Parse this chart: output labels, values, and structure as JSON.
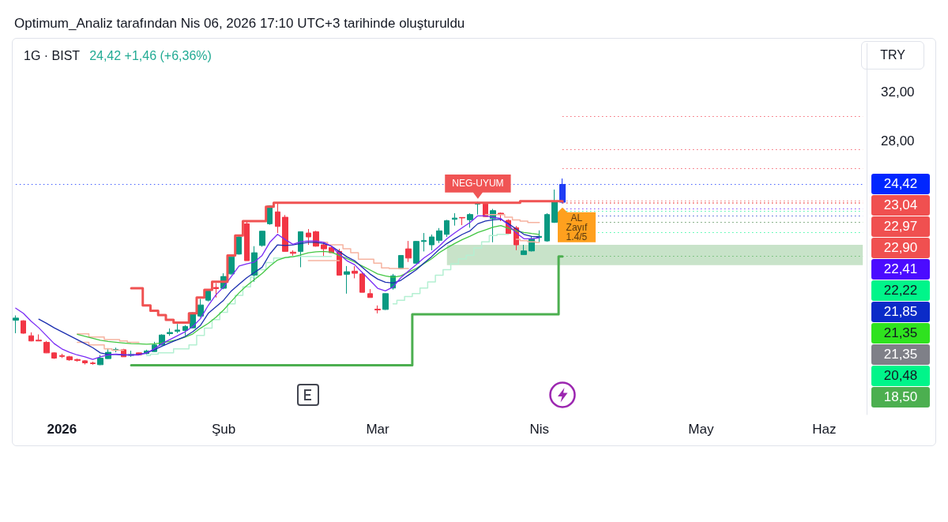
{
  "chart_data": {
    "type": "candlestick",
    "title": "Optimum_Analiz tarafından Nis 06, 2026 17:10 UTC+3 tarihinde oluşturuldu",
    "subtitle": "1G · BIST",
    "ylabel": "TRY",
    "categories": [
      null,
      null,
      null,
      null,
      null,
      null,
      "2026",
      null,
      null,
      null,
      null,
      null,
      null,
      null,
      null,
      null,
      null,
      null,
      null,
      null,
      null,
      null,
      null,
      null,
      null,
      null,
      null,
      "Şub",
      null,
      null,
      null,
      null,
      null,
      null,
      null,
      null,
      null,
      null,
      null,
      null,
      null,
      null,
      null,
      null,
      null,
      null,
      null,
      "Mar",
      null,
      null,
      null,
      null,
      null,
      null,
      null,
      null,
      null,
      null,
      null,
      null,
      null,
      null,
      null,
      null,
      null,
      null,
      null,
      null,
      "Nis",
      null,
      null,
      null,
      null,
      null,
      null,
      null,
      null,
      null,
      null,
      null,
      null,
      null,
      null,
      null,
      null,
      null,
      null,
      null,
      null,
      "May",
      null,
      null,
      null,
      null,
      null,
      null,
      null,
      null,
      null,
      null,
      null,
      null,
      null,
      null,
      null,
      "Haz",
      null,
      null,
      null,
      null,
      null
    ],
    "ohlc": [
      [
        13.26,
        13.65,
        12.19,
        13.43
      ],
      [
        13.21,
        13.25,
        12.15,
        12.19
      ],
      [
        11.98,
        12.26,
        11.52,
        11.55
      ],
      [
        11.62,
        12.09,
        11.55,
        11.55
      ],
      [
        11.44,
        11.55,
        10.55,
        10.57
      ],
      [
        10.57,
        10.62,
        10.08,
        10.14
      ],
      [
        10.35,
        10.5,
        10.15,
        10.28
      ],
      [
        10.25,
        10.33,
        9.92,
        10.0
      ],
      [
        10.03,
        10.1,
        9.85,
        9.95
      ],
      [
        9.92,
        9.98,
        9.62,
        9.75
      ],
      [
        9.74,
        9.85,
        9.6,
        9.69
      ],
      [
        9.6,
        10.4,
        9.56,
        10.14
      ],
      [
        10.1,
        10.96,
        10.08,
        10.62
      ],
      [
        10.78,
        11.0,
        10.62,
        10.86
      ],
      [
        10.83,
        10.9,
        10.25,
        10.25
      ],
      [
        10.36,
        10.75,
        10.25,
        10.44
      ],
      [
        10.57,
        10.6,
        10.38,
        10.42
      ],
      [
        10.51,
        10.83,
        10.46,
        10.73
      ],
      [
        10.68,
        11.48,
        10.66,
        11.22
      ],
      [
        11.22,
        12.1,
        11.2,
        12.04
      ],
      [
        12.15,
        12.58,
        11.98,
        12.25
      ],
      [
        12.35,
        12.95,
        12.2,
        12.45
      ],
      [
        12.41,
        12.85,
        12.0,
        12.74
      ],
      [
        12.63,
        13.9,
        12.6,
        13.86
      ],
      [
        13.6,
        15.01,
        13.5,
        14.51
      ],
      [
        14.9,
        15.81,
        14.8,
        15.66
      ],
      [
        15.95,
        16.31,
        15.12,
        15.85
      ],
      [
        15.88,
        17.11,
        15.8,
        16.85
      ],
      [
        17.06,
        18.55,
        17.0,
        18.47
      ],
      [
        18.69,
        20.2,
        18.65,
        20.1
      ],
      [
        21.18,
        21.4,
        18.15,
        18.15
      ],
      [
        16.96,
        19.34,
        16.42,
        18.8
      ],
      [
        19.4,
        20.6,
        19.3,
        20.57
      ],
      [
        21.18,
        22.7,
        21.1,
        22.65
      ],
      [
        22.16,
        22.91,
        20.42,
        20.96
      ],
      [
        21.72,
        21.9,
        18.9,
        18.91
      ],
      [
        18.85,
        19.0,
        18.55,
        18.75
      ],
      [
        18.91,
        20.55,
        17.61,
        20.53
      ],
      [
        20.42,
        20.75,
        19.45,
        20.1
      ],
      [
        20.53,
        20.6,
        19.3,
        19.34
      ],
      [
        19.45,
        19.7,
        18.47,
        19.12
      ],
      [
        19.23,
        19.35,
        18.8,
        18.8
      ],
      [
        18.91,
        19.12,
        16.96,
        16.96
      ],
      [
        17.03,
        17.71,
        15.44,
        17.24
      ],
      [
        17.29,
        17.7,
        16.7,
        17.11
      ],
      [
        17.06,
        17.2,
        15.55,
        15.55
      ],
      [
        15.44,
        15.81,
        15.12,
        15.12
      ],
      [
        14.17,
        14.47,
        13.82,
        14.1
      ],
      [
        14.14,
        15.45,
        14.1,
        15.44
      ],
      [
        15.9,
        17.06,
        15.77,
        16.9
      ],
      [
        17.5,
        18.6,
        17.45,
        18.58
      ],
      [
        19.12,
        19.77,
        18.04,
        18.36
      ],
      [
        17.94,
        19.77,
        17.9,
        19.73
      ],
      [
        19.72,
        20.42,
        18.91,
        19.8
      ],
      [
        19.45,
        20.3,
        19.0,
        20.1
      ],
      [
        19.82,
        20.83,
        19.6,
        20.6
      ],
      [
        20.31,
        21.5,
        20.1,
        21.44
      ],
      [
        21.55,
        22.05,
        21.03,
        21.65
      ],
      [
        21.7,
        21.72,
        21.07,
        21.66
      ],
      [
        21.51,
        22.05,
        20.86,
        21.94
      ],
      [
        22.8,
        22.98,
        21.94,
        22.92
      ],
      [
        22.81,
        22.95,
        21.75,
        21.77
      ],
      [
        21.61,
        22.4,
        19.66,
        22.26
      ],
      [
        22.05,
        22.1,
        21.4,
        21.94
      ],
      [
        21.46,
        21.55,
        20.3,
        20.38
      ],
      [
        20.86,
        21.0,
        19.01,
        19.45
      ],
      [
        18.65,
        19.45,
        18.63,
        18.95
      ],
      [
        18.95,
        20.15,
        18.9,
        19.95
      ],
      [
        20.05,
        20.64,
        19.66,
        20.15
      ],
      [
        19.77,
        22.05,
        19.7,
        21.94
      ],
      [
        21.3,
        23.99,
        21.25,
        22.96
      ],
      [
        22.95,
        24.9,
        22.85,
        24.42
      ],
      null,
      null,
      null,
      null,
      null,
      null,
      null,
      null,
      null,
      null,
      null,
      null,
      null,
      null,
      null,
      null,
      null,
      null,
      null,
      null,
      null,
      null,
      null,
      null,
      null,
      null,
      null,
      null,
      null,
      null,
      null,
      null,
      null,
      null,
      null,
      null,
      null,
      null,
      null
    ],
    "colors": [
      "#089981",
      "#f23645",
      "#f23645",
      "#f23645",
      "#f23645",
      "#f23645",
      "#f23645",
      "#f23645",
      "#f23645",
      "#f23645",
      "#f23645",
      "#089981",
      "#089981",
      "#089981",
      "#f23645",
      "#089981",
      "#f23645",
      "#089981",
      "#089981",
      "#089981",
      "#089981",
      "#089981",
      "#089981",
      "#089981",
      "#089981",
      "#089981",
      "#f23645",
      "#089981",
      "#089981",
      "#089981",
      "#f23645",
      "#089981",
      "#089981",
      "#089981",
      "#f23645",
      "#f23645",
      "#f23645",
      "#089981",
      "#f23645",
      "#f23645",
      "#f23645",
      "#f23645",
      "#f23645",
      "#089981",
      "#f23645",
      "#f23645",
      "#f23645",
      "#f23645",
      "#089981",
      "#089981",
      "#089981",
      "#f23645",
      "#089981",
      "#089981",
      "#089981",
      "#089981",
      "#089981",
      "#089981",
      "#f23645",
      "#089981",
      "#089981",
      "#f23645",
      "#089981",
      "#f23645",
      "#f23645",
      "#f23645",
      "#089981",
      "#089981",
      "#089981",
      "#089981",
      "#089981",
      "#1f3df5",
      null,
      null,
      null,
      null,
      null,
      null,
      null,
      null,
      null,
      null,
      null,
      null,
      null,
      null,
      null,
      null,
      null,
      null,
      null,
      null,
      null,
      null,
      null,
      null,
      null,
      null,
      null,
      null,
      null,
      null,
      null,
      null,
      null,
      null,
      null,
      null,
      null,
      null,
      null
    ],
    "series": [
      {
        "type": "area",
        "color": "#c8e3c9",
        "values": [
          null,
          null,
          null,
          null,
          null,
          null,
          null,
          null,
          null,
          null,
          null,
          null,
          null,
          null,
          null,
          null,
          null,
          null,
          null,
          null,
          null,
          null,
          null,
          null,
          null,
          null,
          null,
          null,
          null,
          null,
          null,
          null,
          null,
          null,
          null,
          null,
          null,
          null,
          null,
          null,
          null,
          null,
          null,
          null,
          null,
          null,
          null,
          null,
          null,
          null,
          null,
          null,
          null,
          null,
          null,
          null,
          null,
          null,
          null,
          null,
          null,
          null,
          null,
          null,
          null,
          null,
          null,
          null,
          null,
          null,
          null,
          null,
          null,
          null,
          null,
          null,
          null,
          null,
          null,
          null,
          null,
          null,
          null,
          null,
          null,
          null,
          null,
          null,
          null,
          null,
          null,
          null,
          null,
          null,
          null,
          null,
          null,
          null,
          null,
          null,
          null,
          null,
          null,
          null,
          null,
          null,
          null,
          null,
          null,
          null,
          null
        ],
        "lower": [
          null,
          null,
          null,
          null,
          null,
          null,
          null,
          null,
          null,
          null,
          null,
          null,
          null,
          null,
          null,
          null,
          null,
          null,
          null,
          null,
          null,
          null,
          null,
          null,
          null,
          null,
          null,
          null,
          null,
          null,
          null,
          null,
          null,
          null,
          null,
          null,
          null,
          null,
          null,
          null,
          null,
          null,
          null,
          null,
          null,
          null,
          null,
          null,
          null,
          null,
          null,
          null,
          null,
          null,
          null,
          null,
          17.78,
          17.78,
          17.78,
          17.78,
          17.78,
          17.78,
          17.78,
          17.78,
          17.78,
          17.78,
          17.78,
          17.78,
          17.78,
          17.78,
          17.78,
          17.78,
          17.78,
          17.78,
          17.78,
          17.78,
          17.78,
          17.78,
          17.78,
          17.78,
          17.78,
          17.78,
          17.78,
          17.78,
          17.78,
          17.78,
          17.78,
          17.78,
          17.78,
          17.78,
          17.78,
          17.78,
          17.78,
          17.78,
          17.78,
          17.78,
          17.78,
          17.78,
          17.78,
          17.78,
          17.78,
          17.78,
          17.78,
          17.78,
          17.78,
          17.78,
          17.78,
          17.78,
          17.78,
          17.78,
          17.78
        ],
        "upper": [
          null,
          null,
          null,
          null,
          null,
          null,
          null,
          null,
          null,
          null,
          null,
          null,
          null,
          null,
          null,
          null,
          null,
          null,
          null,
          null,
          null,
          null,
          null,
          null,
          null,
          null,
          null,
          null,
          null,
          null,
          null,
          null,
          null,
          null,
          null,
          null,
          null,
          null,
          null,
          null,
          null,
          null,
          null,
          null,
          null,
          null,
          null,
          null,
          null,
          null,
          null,
          null,
          null,
          null,
          null,
          null,
          19.45,
          19.45,
          19.45,
          19.45,
          19.45,
          19.45,
          19.45,
          19.45,
          19.45,
          19.45,
          19.45,
          19.45,
          19.45,
          19.45,
          19.45,
          19.45,
          19.45,
          19.45,
          19.45,
          19.45,
          19.45,
          19.45,
          19.45,
          19.45,
          19.45,
          19.45,
          19.45,
          19.45,
          19.45,
          19.45,
          19.45,
          19.45,
          19.45,
          19.45,
          19.45,
          19.45,
          19.45,
          19.45,
          19.45,
          19.45,
          19.45,
          19.45,
          19.45,
          19.45,
          19.45,
          19.45,
          19.45,
          19.45,
          19.45,
          19.45,
          19.45,
          19.45,
          19.45,
          19.45,
          19.45
        ]
      },
      {
        "type": "step",
        "color": "#f6b3a0",
        "values": [
          null,
          null,
          null,
          null,
          null,
          null,
          null,
          null,
          12.13,
          12.13,
          11.87,
          11.87,
          11.66,
          11.66,
          11.55,
          11.44,
          11.44,
          null,
          null,
          null,
          null,
          null,
          null,
          null,
          null,
          null,
          null,
          null,
          null,
          null,
          null,
          null,
          null,
          null,
          null,
          null,
          null,
          null,
          null,
          null,
          19.66,
          19.45,
          19.45,
          19.12,
          18.8,
          18.26,
          18.26,
          17.94,
          17.55,
          17.5,
          17.5,
          17.5,
          null,
          null,
          null,
          null,
          null,
          null,
          null,
          null,
          null,
          21.94,
          21.94,
          21.94,
          21.72,
          21.5,
          21.4,
          21.29,
          21.29,
          null,
          null,
          null,
          null,
          null,
          null,
          null,
          null,
          null,
          null,
          null,
          null,
          null,
          null,
          null,
          null,
          null,
          null,
          null,
          null,
          null,
          null,
          null,
          null,
          null,
          null,
          null,
          null,
          null,
          null,
          null,
          null,
          null,
          null,
          null,
          null,
          null,
          null,
          null,
          null,
          null,
          null
        ]
      },
      {
        "type": "step",
        "color": "#f6b3a0",
        "values": [
          null,
          null,
          null,
          null,
          null,
          null,
          null,
          null,
          11.44,
          11.44,
          11.22,
          11.22,
          10.9,
          10.79,
          10.79,
          null,
          null,
          null,
          null,
          null,
          null,
          null,
          null,
          null,
          null,
          null,
          null,
          null,
          null,
          null,
          null,
          null,
          null,
          null,
          null,
          null,
          null,
          null,
          18.15,
          18.15,
          18.15,
          18.15,
          18.15,
          null,
          null,
          null,
          null,
          null,
          null,
          null,
          null,
          null,
          null,
          null,
          null,
          null,
          null,
          null,
          null,
          null,
          null,
          null,
          null,
          null,
          null,
          19.9,
          19.8,
          19.7,
          19.65,
          null,
          null,
          null,
          null,
          null,
          null,
          null,
          null,
          null,
          null,
          null,
          null,
          null,
          null,
          null,
          null,
          null,
          null,
          null,
          null,
          null,
          null,
          null,
          null,
          null,
          null,
          null,
          null,
          null,
          null,
          null,
          null,
          null,
          null,
          null,
          null,
          null,
          null,
          null,
          null,
          null,
          null
        ]
      },
      {
        "type": "step",
        "color": "#b4f0d2",
        "values": [
          null,
          null,
          null,
          null,
          null,
          null,
          null,
          null,
          null,
          null,
          null,
          null,
          null,
          null,
          null,
          null,
          null,
          10.35,
          10.47,
          10.57,
          10.57,
          10.9,
          10.9,
          11.22,
          12.0,
          12.6,
          13.3,
          13.9,
          14.6,
          15.3,
          16.0,
          16.8,
          17.4,
          18.0,
          18.36,
          18.4,
          18.5,
          18.5,
          18.5,
          18.5,
          18.5,
          18.5,
          null,
          null,
          null,
          null,
          null,
          null,
          null,
          14.6,
          14.9,
          15.2,
          15.44,
          15.9,
          16.4,
          16.96,
          17.4,
          17.9,
          18.3,
          18.6,
          19.2,
          19.7,
          20.21,
          20.31,
          20.31,
          null,
          null,
          null,
          null,
          null,
          null,
          null,
          null,
          null,
          null,
          null,
          null,
          null,
          null,
          null,
          null,
          null,
          null,
          null,
          null,
          null,
          null,
          null,
          null,
          null,
          null,
          null,
          null,
          null,
          null,
          null,
          null,
          null,
          null,
          null,
          null,
          null,
          null,
          null,
          null,
          null,
          null,
          null,
          null,
          null,
          null
        ]
      },
      {
        "type": "line",
        "color": "#43c743",
        "values": [
          null,
          null,
          null,
          null,
          null,
          null,
          null,
          null,
          12.09,
          11.94,
          11.77,
          11.61,
          11.51,
          11.44,
          11.38,
          11.33,
          11.31,
          11.29,
          11.31,
          11.4,
          11.51,
          11.66,
          11.87,
          12.13,
          12.6,
          13.0,
          13.5,
          14.1,
          14.8,
          15.5,
          16.1,
          16.6,
          17.1,
          17.7,
          18.2,
          18.41,
          18.47,
          18.62,
          18.8,
          18.88,
          18.91,
          18.84,
          18.58,
          18.32,
          18.04,
          17.71,
          17.39,
          17.06,
          16.9,
          16.78,
          16.9,
          17.2,
          17.5,
          17.9,
          18.3,
          18.8,
          19.2,
          19.56,
          19.88,
          20.16,
          20.47,
          20.68,
          20.9,
          21.03,
          20.81,
          20.6,
          20.47,
          20.38,
          20.31,
          null,
          null,
          null,
          null,
          null,
          null,
          null,
          null,
          null,
          null,
          null,
          null,
          null,
          null,
          null,
          null,
          null,
          null,
          null,
          null,
          null,
          null,
          null,
          null,
          null,
          null,
          null,
          null,
          null,
          null,
          null,
          null,
          null,
          null,
          null,
          null,
          null,
          null,
          null,
          null,
          null,
          null
        ]
      },
      {
        "type": "line",
        "color": "#1c2fb0",
        "values": [
          null,
          null,
          null,
          13.34,
          13.0,
          12.63,
          12.31,
          11.98,
          11.66,
          11.33,
          11.0,
          10.57,
          10.44,
          10.44,
          10.4,
          10.4,
          10.44,
          10.57,
          10.83,
          11.12,
          11.4,
          11.66,
          11.92,
          12.31,
          12.84,
          13.82,
          14.36,
          14.9,
          15.66,
          16.2,
          16.74,
          17.18,
          17.61,
          18.69,
          19.45,
          19.4,
          19.45,
          19.56,
          19.66,
          19.66,
          19.56,
          19.34,
          18.91,
          18.47,
          18.15,
          17.61,
          17.06,
          16.64,
          16.38,
          16.31,
          16.53,
          16.96,
          17.39,
          17.94,
          18.47,
          19.08,
          19.56,
          19.95,
          20.31,
          20.6,
          21.18,
          21.4,
          21.51,
          21.55,
          21.18,
          20.75,
          20.31,
          20.14,
          20.1,
          null,
          null,
          null,
          null,
          null,
          null,
          null,
          null,
          null,
          null,
          null,
          null,
          null,
          null,
          null,
          null,
          null,
          null,
          null,
          null,
          null,
          null,
          null,
          null,
          null,
          null,
          null,
          null,
          null,
          null,
          null,
          null,
          null,
          null,
          null,
          null,
          null,
          null,
          null,
          null,
          null,
          null
        ]
      },
      {
        "type": "line",
        "color": "#7a2cf5",
        "values": [
          14.25,
          13.82,
          13.17,
          12.63,
          11.98,
          11.33,
          10.9,
          10.62,
          10.4,
          10.25,
          10.03,
          10.25,
          10.4,
          10.47,
          10.42,
          10.4,
          10.4,
          10.57,
          10.9,
          11.33,
          11.66,
          11.98,
          12.31,
          12.74,
          13.39,
          14.47,
          15.34,
          15.99,
          16.85,
          17.71,
          17.89,
          18.04,
          18.58,
          19.66,
          20.31,
          19.88,
          19.49,
          19.71,
          19.77,
          19.77,
          19.66,
          19.34,
          18.69,
          18.15,
          17.82,
          17.18,
          16.53,
          15.88,
          15.66,
          15.99,
          16.74,
          17.29,
          17.82,
          18.36,
          18.8,
          19.34,
          19.95,
          20.42,
          20.86,
          21.29,
          21.83,
          21.83,
          21.72,
          21.61,
          21.07,
          20.42,
          19.95,
          19.95,
          20.03,
          null,
          null,
          null,
          null,
          null,
          null,
          null,
          null,
          null,
          null,
          null,
          null,
          null,
          null,
          null,
          null,
          null,
          null,
          null,
          null,
          null,
          null,
          null,
          null,
          null,
          null,
          null,
          null,
          null,
          null,
          null,
          null,
          null,
          null,
          null,
          null,
          null,
          null,
          null,
          null,
          null,
          null
        ]
      },
      {
        "type": "step",
        "color": "#f05252",
        "values": [
          null,
          null,
          null,
          null,
          null,
          null,
          null,
          null,
          null,
          null,
          null,
          null,
          null,
          null,
          null,
          15.88,
          15.88,
          14.47,
          14.04,
          13.67,
          13.28,
          13.06,
          13.06,
          13.82,
          15.12,
          15.76,
          16.42,
          16.42,
          18.58,
          20.21,
          21.4,
          21.4,
          21.4,
          22.58,
          22.9,
          22.9,
          22.9,
          22.9,
          22.9,
          22.9,
          22.9,
          22.9,
          22.9,
          22.9,
          22.9,
          22.9,
          22.9,
          22.9,
          22.9,
          22.9,
          22.9,
          22.9,
          22.9,
          22.9,
          22.9,
          22.9,
          22.9,
          22.9,
          22.9,
          22.9,
          22.9,
          22.9,
          22.9,
          22.9,
          22.9,
          22.9,
          23.04,
          23.04,
          23.04,
          23.04,
          23.04,
          23.04,
          null,
          null,
          null,
          null,
          null,
          null,
          null,
          null,
          null,
          null,
          null,
          null,
          null,
          null,
          null,
          null,
          null,
          null,
          null,
          null,
          null,
          null,
          null,
          null,
          null,
          null,
          null,
          null,
          null,
          null,
          null,
          null,
          null,
          null,
          null,
          null,
          null,
          null,
          null
        ]
      },
      {
        "type": "step",
        "color": "#4caf50",
        "values": [
          null,
          null,
          null,
          null,
          null,
          null,
          null,
          null,
          null,
          null,
          null,
          null,
          null,
          null,
          null,
          9.56,
          9.56,
          9.56,
          9.56,
          9.56,
          9.56,
          9.56,
          9.56,
          9.56,
          9.56,
          9.56,
          9.56,
          9.56,
          9.56,
          9.56,
          9.56,
          9.56,
          9.56,
          9.56,
          9.56,
          9.56,
          9.56,
          9.56,
          9.56,
          9.56,
          9.56,
          9.56,
          9.56,
          9.56,
          9.56,
          9.56,
          9.56,
          9.56,
          9.56,
          9.56,
          9.56,
          9.56,
          13.74,
          13.74,
          13.74,
          13.74,
          13.74,
          13.74,
          13.74,
          13.74,
          13.74,
          13.74,
          13.74,
          13.74,
          13.74,
          13.74,
          13.74,
          13.74,
          13.74,
          13.74,
          13.74,
          18.5,
          null,
          null,
          null,
          null,
          null,
          null,
          null,
          null,
          null,
          null,
          null,
          null,
          null,
          null,
          null,
          null,
          null,
          null,
          null,
          null,
          null,
          null,
          null,
          null,
          null,
          null,
          null,
          null,
          null,
          null,
          null,
          null,
          null,
          null,
          null,
          null,
          null,
          null,
          null
        ]
      }
    ],
    "ylim": [
      5.5,
      36
    ],
    "yticks": [
      {
        "value": 28,
        "label": "28,00"
      },
      {
        "value": 32,
        "label": "32,00"
      }
    ],
    "ref_lines": [
      {
        "axis": "y",
        "value": 30.0,
        "color": "#f23645",
        "line_style": "dotted"
      },
      {
        "axis": "y",
        "value": 27.3,
        "color": "#f23645",
        "line_style": "dotted"
      },
      {
        "axis": "y",
        "value": 25.7,
        "color": "#f23645",
        "line_style": "dotted"
      },
      {
        "axis": "y",
        "value": 24.42,
        "label": "24,42",
        "color": "#0026ff",
        "line_style": "dotted"
      },
      {
        "axis": "y",
        "value": 23.04,
        "label": "23,04",
        "color": "#f05050",
        "line_style": "dotted"
      },
      {
        "axis": "y",
        "value": 22.97,
        "label": "22,97",
        "color": "#f05050",
        "line_style": "dotted"
      },
      {
        "axis": "y",
        "value": 22.9,
        "label": "22,90",
        "color": "#f05050",
        "line_style": "dotted"
      },
      {
        "axis": "y",
        "value": 22.41,
        "label": "22,41",
        "color": "#4b0bff",
        "line_style": "dotted"
      },
      {
        "axis": "y",
        "value": 22.22,
        "label": "22,22",
        "color": "#00f58a",
        "line_style": "dotted"
      },
      {
        "axis": "y",
        "value": 21.85,
        "label": "21,85",
        "color": "#0b2bc8",
        "line_style": "dotted"
      },
      {
        "axis": "y",
        "value": 21.35,
        "label": "21,35",
        "color": "#2fe21f",
        "line_style": "dotted"
      },
      {
        "axis": "y",
        "value": 21.35,
        "label": "21,35",
        "color": "#7f8088",
        "line_style": "dotted"
      },
      {
        "axis": "y",
        "value": 20.48,
        "label": "20,48",
        "color": "#00f58a",
        "line_style": "dotted"
      },
      {
        "axis": "y",
        "value": 18.5,
        "label": "18,50",
        "color": "#4caf50",
        "line_style": "dotted"
      }
    ],
    "annotations": [
      "24,42 +1,46 (+6,36%)",
      {
        "text": "NEG-UYUM",
        "y": 22.98
      },
      {
        "text": "AL Zayıf 1.4/5",
        "y": 22.85
      }
    ],
    "legend": "right",
    "marker": "none"
  }
}
